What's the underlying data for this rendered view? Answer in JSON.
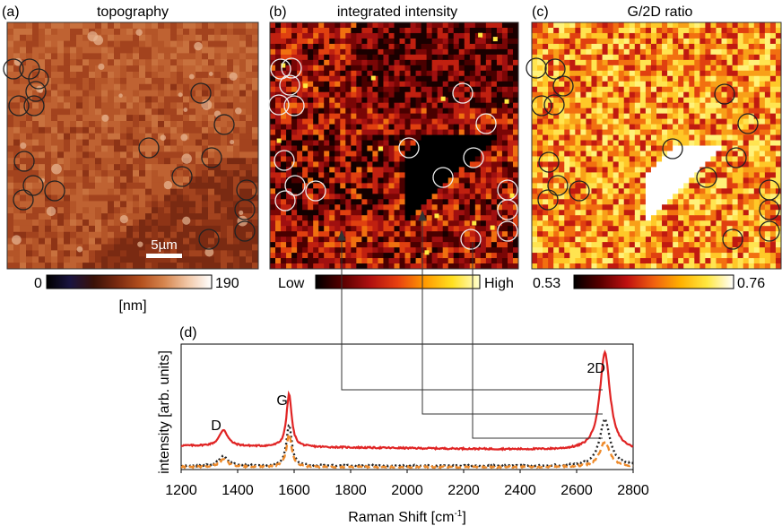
{
  "panels": {
    "a": {
      "label": "(a)",
      "title": "topography",
      "scalebar": "5µm",
      "colorbar": {
        "min": "0",
        "max": "190",
        "unit": "[nm]",
        "stops": [
          "#000000",
          "#1a1440",
          "#3a1208",
          "#7a2a10",
          "#b4501e",
          "#d68650",
          "#f2c8a8",
          "#ffffff"
        ]
      }
    },
    "b": {
      "label": "(b)",
      "title": "integrated intensity",
      "colorbar": {
        "min": "Low",
        "max": "High",
        "stops": [
          "#000000",
          "#5a0000",
          "#b01010",
          "#e84010",
          "#ff9a00",
          "#ffe020",
          "#ffffd0"
        ]
      }
    },
    "c": {
      "label": "(c)",
      "title": "G/2D ratio",
      "colorbar": {
        "min": "0.53",
        "max": "0.76",
        "stops": [
          "#000000",
          "#5a0000",
          "#c01010",
          "#f06010",
          "#ffb000",
          "#ffe840",
          "#ffffff"
        ]
      }
    }
  },
  "chart_data": {
    "type": "line",
    "panel_label": "(d)",
    "xlabel": "Raman Shift [cm",
    "xlabel_sup": "-1",
    "xlabel_tail": "]",
    "ylabel": "intensity [arb. units]",
    "xlim": [
      1200,
      2800
    ],
    "ylim": [
      0,
      1
    ],
    "x_ticks": [
      "1200",
      "1400",
      "1600",
      "1800",
      "2000",
      "2200",
      "2400",
      "2600",
      "2800"
    ],
    "annotations": [
      {
        "text": "D",
        "x": 1350
      },
      {
        "text": "G",
        "x": 1582
      },
      {
        "text": "2D",
        "x": 2700
      }
    ],
    "series": [
      {
        "color": "#e02424",
        "style": "solid",
        "baseline": 0.19,
        "tilt": -0.04,
        "peaks": [
          [
            1350,
            0.13,
            18
          ],
          [
            1582,
            0.42,
            11
          ],
          [
            2700,
            0.78,
            22
          ]
        ]
      },
      {
        "color": "#222222",
        "style": "dotted",
        "baseline": 0.03,
        "tilt": 0.0,
        "peaks": [
          [
            1350,
            0.08,
            18
          ],
          [
            1582,
            0.33,
            11
          ],
          [
            2700,
            0.37,
            22
          ]
        ]
      },
      {
        "color": "#ee8a2a",
        "style": "dashed",
        "baseline": 0.02,
        "tilt": 0.0,
        "peaks": [
          [
            1350,
            0.06,
            18
          ],
          [
            1582,
            0.26,
            11
          ],
          [
            2700,
            0.2,
            22
          ]
        ]
      }
    ]
  }
}
